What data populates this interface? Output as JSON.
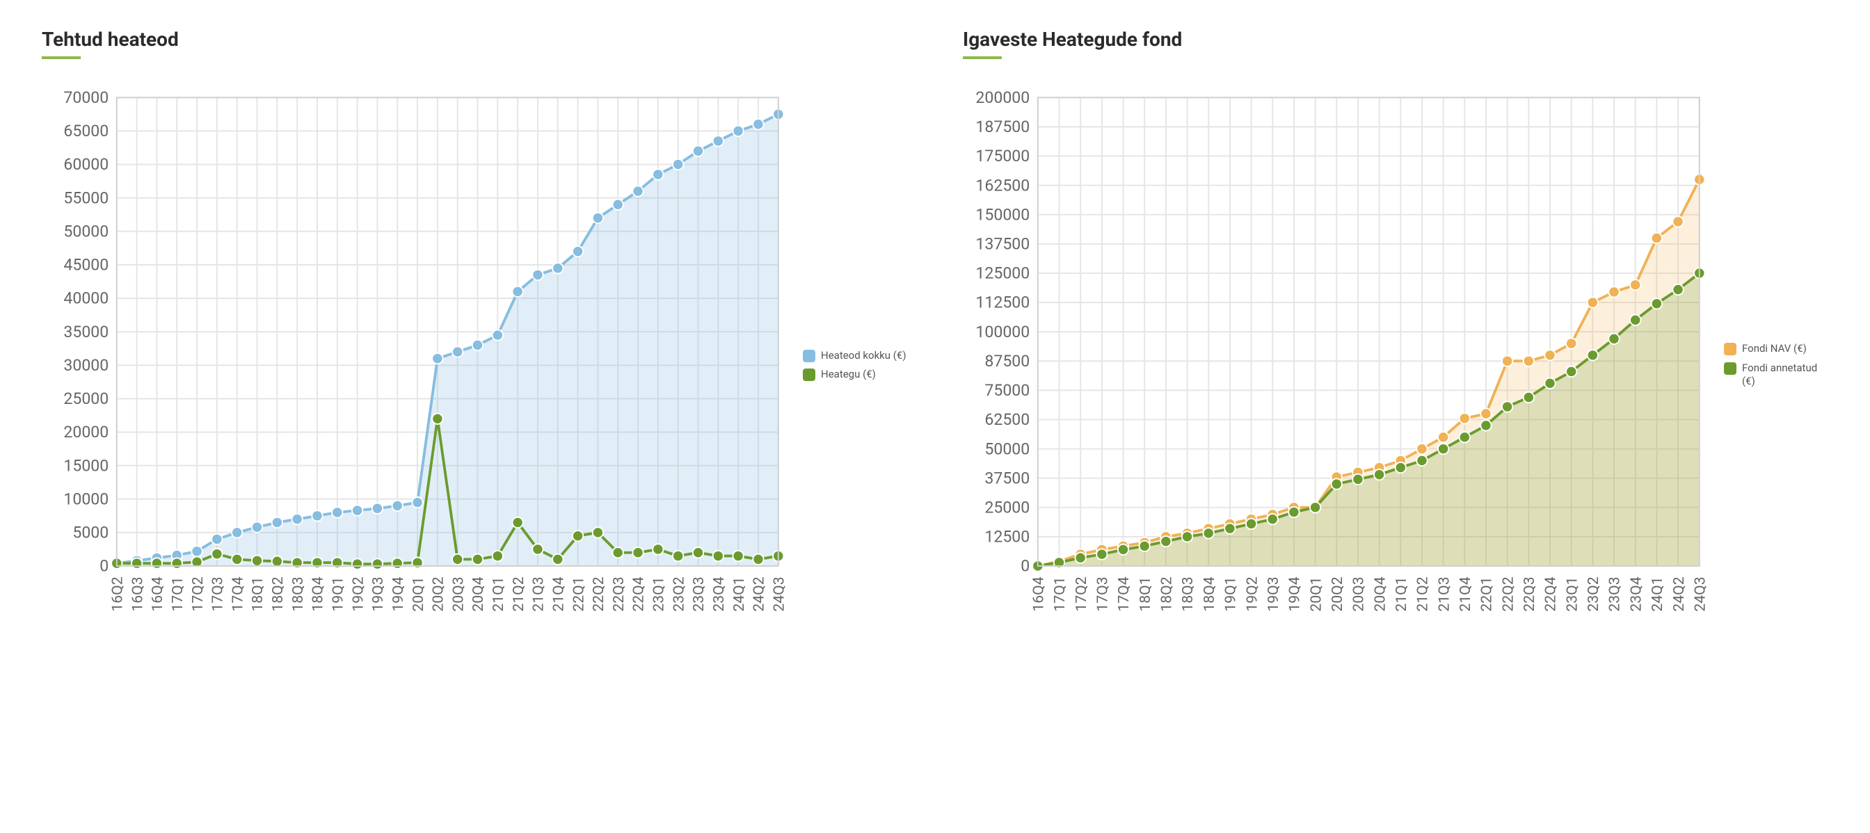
{
  "charts": [
    {
      "id": "tehtud",
      "title": "Tehtud heateod",
      "underline_color": "#8fb84a",
      "type": "line+area",
      "categories": [
        "16Q2",
        "16Q3",
        "16Q4",
        "17Q1",
        "17Q2",
        "17Q3",
        "17Q4",
        "18Q1",
        "18Q2",
        "18Q3",
        "18Q4",
        "19Q1",
        "19Q2",
        "19Q3",
        "19Q4",
        "20Q1",
        "20Q2",
        "20Q3",
        "20Q4",
        "21Q1",
        "21Q2",
        "21Q3",
        "21Q4",
        "22Q1",
        "22Q2",
        "22Q3",
        "22Q4",
        "23Q1",
        "23Q2",
        "23Q3",
        "23Q4",
        "24Q1",
        "24Q2",
        "24Q3"
      ],
      "ylim": [
        0,
        70000
      ],
      "ytick_step": 5000,
      "background_color": "#ffffff",
      "grid_color": "#e5e5e5",
      "axis_fontsize": 11,
      "title_fontsize": 28,
      "marker_radius": 4,
      "line_width": 2,
      "series": [
        {
          "name": "Heateod kokku (€)",
          "color": "#86bde0",
          "fill_color": "rgba(134,189,224,0.25)",
          "filled": true,
          "values": [
            400,
            800,
            1200,
            1600,
            2200,
            4000,
            5000,
            5800,
            6500,
            7000,
            7500,
            8000,
            8300,
            8600,
            9000,
            9500,
            31000,
            32000,
            33000,
            34500,
            41000,
            43500,
            44500,
            47000,
            52000,
            54000,
            56000,
            58500,
            60000,
            62000,
            63500,
            65000,
            66000,
            67500
          ]
        },
        {
          "name": "Heategu (€)",
          "color": "#6b9b2f",
          "fill_color": "rgba(107,155,47,0)",
          "filled": false,
          "values": [
            400,
            400,
            400,
            400,
            600,
            1800,
            1000,
            800,
            700,
            500,
            500,
            500,
            300,
            300,
            400,
            500,
            22000,
            1000,
            1000,
            1500,
            6500,
            2500,
            1000,
            4500,
            5000,
            2000,
            2000,
            2500,
            1500,
            2000,
            1500,
            1500,
            1000,
            1500
          ]
        }
      ]
    },
    {
      "id": "igaveste",
      "title": "Igaveste Heategude fond",
      "underline_color": "#8fb84a",
      "type": "line+area",
      "categories": [
        "16Q4",
        "17Q1",
        "17Q2",
        "17Q3",
        "17Q4",
        "18Q1",
        "18Q2",
        "18Q3",
        "18Q4",
        "19Q1",
        "19Q2",
        "19Q3",
        "19Q4",
        "20Q1",
        "20Q2",
        "20Q3",
        "20Q4",
        "21Q1",
        "21Q2",
        "21Q3",
        "21Q4",
        "22Q1",
        "22Q2",
        "22Q3",
        "22Q4",
        "23Q1",
        "23Q2",
        "23Q3",
        "23Q4",
        "24Q1",
        "24Q2",
        "24Q3"
      ],
      "ylim": [
        0,
        200000
      ],
      "ytick_step": 12500,
      "background_color": "#ffffff",
      "grid_color": "#e5e5e5",
      "axis_fontsize": 11,
      "title_fontsize": 28,
      "marker_radius": 4,
      "line_width": 2,
      "series": [
        {
          "name": "Fondi NAV (€)",
          "color": "#f0b255",
          "fill_color": "rgba(240,178,85,0.20)",
          "filled": true,
          "values": [
            0,
            2000,
            5000,
            7000,
            8500,
            10000,
            12500,
            14000,
            16000,
            18000,
            20000,
            22000,
            25000,
            25000,
            38000,
            40000,
            42000,
            45000,
            50000,
            55000,
            63000,
            65000,
            87500,
            87500,
            90000,
            95000,
            112500,
            117000,
            120000,
            140000,
            147000,
            165000
          ]
        },
        {
          "name": "Fondi annetatud (€)",
          "color": "#6b9b2f",
          "fill_color": "rgba(107,155,47,0.20)",
          "filled": true,
          "values": [
            0,
            1500,
            3500,
            5000,
            7000,
            8500,
            10500,
            12500,
            14000,
            16000,
            18000,
            20000,
            23000,
            25000,
            35000,
            37000,
            39000,
            42000,
            45000,
            50000,
            55000,
            60000,
            68000,
            72000,
            78000,
            83000,
            90000,
            97000,
            105000,
            112000,
            118000,
            125000
          ]
        }
      ]
    }
  ]
}
